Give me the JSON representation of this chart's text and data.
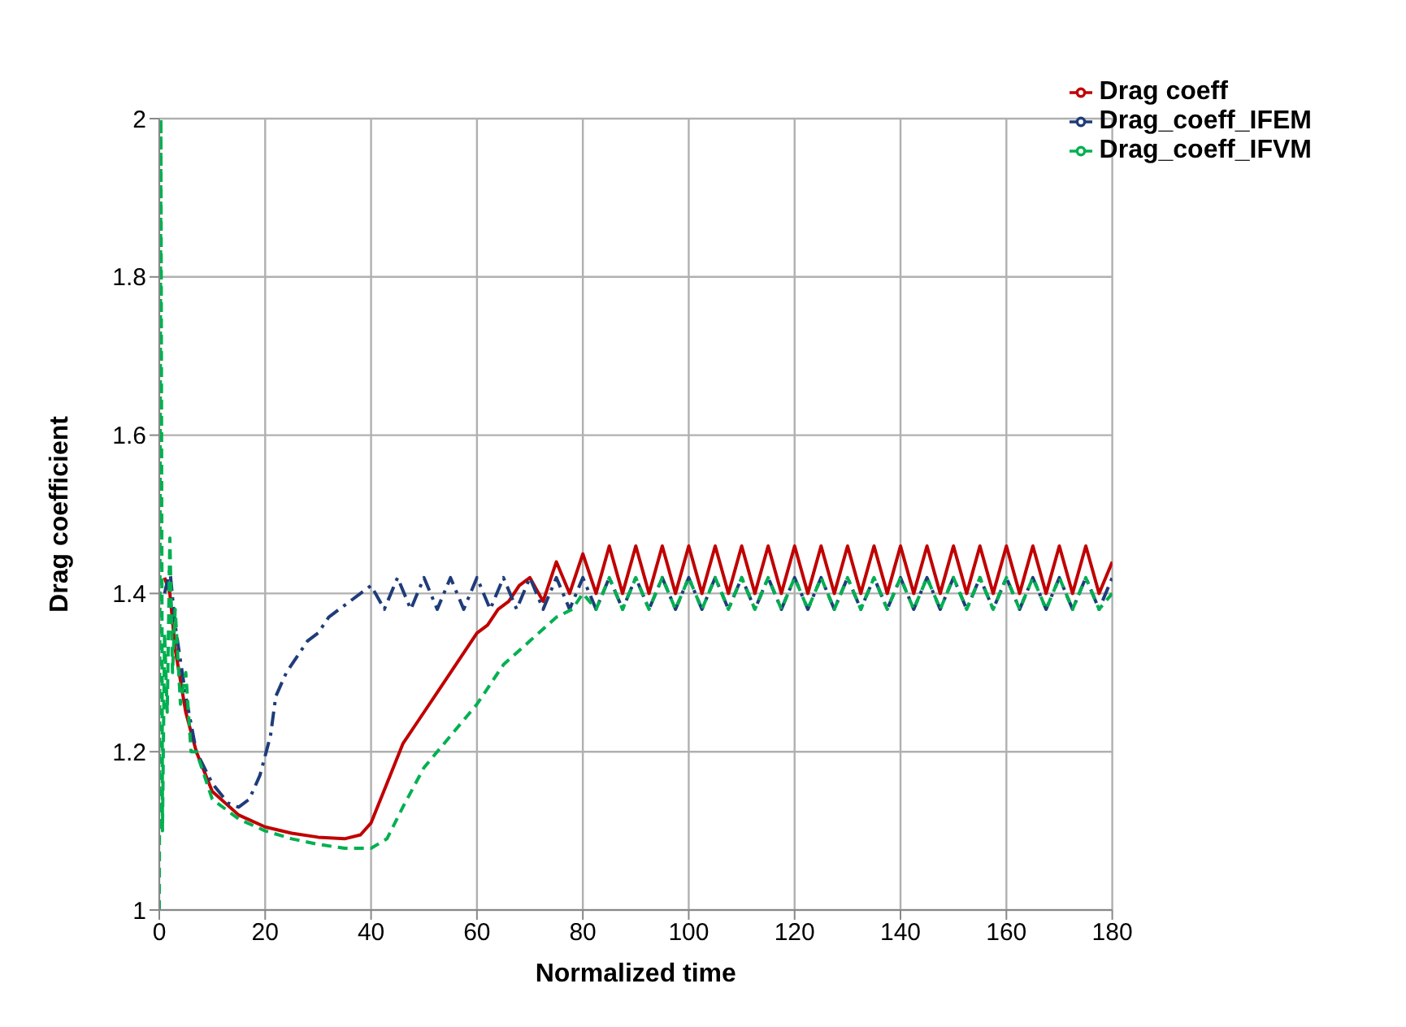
{
  "chart_data": {
    "type": "line",
    "xlabel": "Normalized time",
    "ylabel": "Drag coefficient",
    "xlim": [
      0,
      180
    ],
    "xticks": [
      0,
      20,
      40,
      60,
      80,
      100,
      120,
      140,
      160,
      180
    ],
    "ylim": [
      1,
      2
    ],
    "yticks": [
      1,
      1.2,
      1.4,
      1.6,
      1.8,
      2
    ],
    "grid": true,
    "legend": "top right",
    "marker": "none",
    "series": [
      {
        "name": "Drag coeff",
        "color": "#c00000",
        "line_style": "solid",
        "x": [
          1,
          2,
          3,
          5,
          7,
          10,
          15,
          20,
          25,
          30,
          35,
          38,
          40,
          43,
          46,
          50,
          53,
          56,
          58,
          60,
          62,
          64,
          66,
          68,
          70,
          72.5,
          75,
          77.5,
          80,
          82.5,
          85,
          87.5,
          90,
          92.5,
          95,
          97.5,
          100,
          102.5,
          105,
          107.5,
          110,
          112.5,
          115,
          117.5,
          120,
          122.5,
          125,
          127.5,
          130,
          132.5,
          135,
          137.5,
          140,
          142.5,
          145,
          147.5,
          150,
          152.5,
          155,
          157.5,
          160,
          162.5,
          165,
          167.5,
          170,
          172.5,
          175,
          177.5,
          180
        ],
        "values": [
          1.42,
          1.4,
          1.33,
          1.25,
          1.2,
          1.15,
          1.12,
          1.105,
          1.097,
          1.092,
          1.09,
          1.095,
          1.11,
          1.16,
          1.21,
          1.25,
          1.28,
          1.31,
          1.33,
          1.35,
          1.36,
          1.38,
          1.39,
          1.41,
          1.42,
          1.39,
          1.44,
          1.4,
          1.45,
          1.4,
          1.46,
          1.4,
          1.46,
          1.4,
          1.46,
          1.4,
          1.46,
          1.4,
          1.46,
          1.4,
          1.46,
          1.4,
          1.46,
          1.4,
          1.46,
          1.4,
          1.46,
          1.4,
          1.46,
          1.4,
          1.46,
          1.4,
          1.46,
          1.4,
          1.46,
          1.4,
          1.46,
          1.4,
          1.46,
          1.4,
          1.46,
          1.4,
          1.46,
          1.4,
          1.46,
          1.4,
          1.46,
          1.4,
          1.44
        ]
      },
      {
        "name": "Drag_coeff_IFEM",
        "color": "#1f3c7a",
        "line_style": "dashdot",
        "x": [
          1,
          2,
          3,
          5,
          7,
          10,
          13,
          15,
          17,
          19,
          21,
          22,
          24,
          26,
          28,
          30,
          32,
          34,
          36,
          38,
          40,
          42.5,
          45,
          47.5,
          50,
          52.5,
          55,
          57.5,
          60,
          62.5,
          65,
          67.5,
          70,
          72.5,
          75,
          77.5,
          80,
          82.5,
          85,
          87.5,
          90,
          92.5,
          95,
          97.5,
          100,
          102.5,
          105,
          107.5,
          110,
          112.5,
          115,
          117.5,
          120,
          122.5,
          125,
          127.5,
          130,
          132.5,
          135,
          137.5,
          140,
          142.5,
          145,
          147.5,
          150,
          152.5,
          155,
          157.5,
          160,
          162.5,
          165,
          167.5,
          170,
          172.5,
          175,
          177.5,
          180
        ],
        "values": [
          1.4,
          1.43,
          1.36,
          1.27,
          1.2,
          1.16,
          1.135,
          1.13,
          1.14,
          1.17,
          1.22,
          1.27,
          1.3,
          1.32,
          1.34,
          1.35,
          1.37,
          1.38,
          1.39,
          1.4,
          1.41,
          1.38,
          1.42,
          1.38,
          1.42,
          1.38,
          1.42,
          1.38,
          1.42,
          1.38,
          1.42,
          1.38,
          1.42,
          1.38,
          1.42,
          1.38,
          1.42,
          1.38,
          1.42,
          1.38,
          1.42,
          1.38,
          1.42,
          1.38,
          1.42,
          1.38,
          1.42,
          1.38,
          1.42,
          1.38,
          1.42,
          1.38,
          1.42,
          1.38,
          1.42,
          1.38,
          1.42,
          1.38,
          1.42,
          1.38,
          1.42,
          1.38,
          1.42,
          1.38,
          1.42,
          1.38,
          1.42,
          1.38,
          1.42,
          1.38,
          1.42,
          1.38,
          1.42,
          1.38,
          1.42,
          1.38,
          1.42
        ]
      },
      {
        "name": "Drag_coeff_IFVM",
        "color": "#00b050",
        "line_style": "dashed",
        "x": [
          0,
          0.3,
          0.6,
          1,
          1.5,
          2,
          2.5,
          3,
          4,
          5,
          6,
          7,
          10,
          15,
          20,
          25,
          30,
          35,
          40,
          43,
          46,
          50,
          55,
          60,
          65,
          70,
          75,
          78,
          80,
          82.5,
          85,
          87.5,
          90,
          92.5,
          95,
          97.5,
          100,
          102.5,
          105,
          107.5,
          110,
          112.5,
          115,
          117.5,
          120,
          122.5,
          125,
          127.5,
          130,
          132.5,
          135,
          137.5,
          140,
          142.5,
          145,
          147.5,
          150,
          152.5,
          155,
          157.5,
          160,
          162.5,
          165,
          167.5,
          170,
          172.5,
          175,
          177.5,
          180
        ],
        "values": [
          1.0,
          2.0,
          1.1,
          1.35,
          1.25,
          1.47,
          1.3,
          1.38,
          1.26,
          1.3,
          1.2,
          1.2,
          1.14,
          1.115,
          1.1,
          1.09,
          1.083,
          1.078,
          1.078,
          1.09,
          1.13,
          1.18,
          1.22,
          1.26,
          1.31,
          1.34,
          1.37,
          1.38,
          1.4,
          1.38,
          1.42,
          1.38,
          1.42,
          1.38,
          1.42,
          1.38,
          1.42,
          1.38,
          1.42,
          1.38,
          1.42,
          1.38,
          1.42,
          1.38,
          1.42,
          1.38,
          1.42,
          1.38,
          1.42,
          1.38,
          1.42,
          1.38,
          1.42,
          1.38,
          1.42,
          1.38,
          1.42,
          1.38,
          1.42,
          1.38,
          1.42,
          1.38,
          1.42,
          1.38,
          1.42,
          1.38,
          1.42,
          1.38,
          1.4
        ]
      }
    ]
  }
}
